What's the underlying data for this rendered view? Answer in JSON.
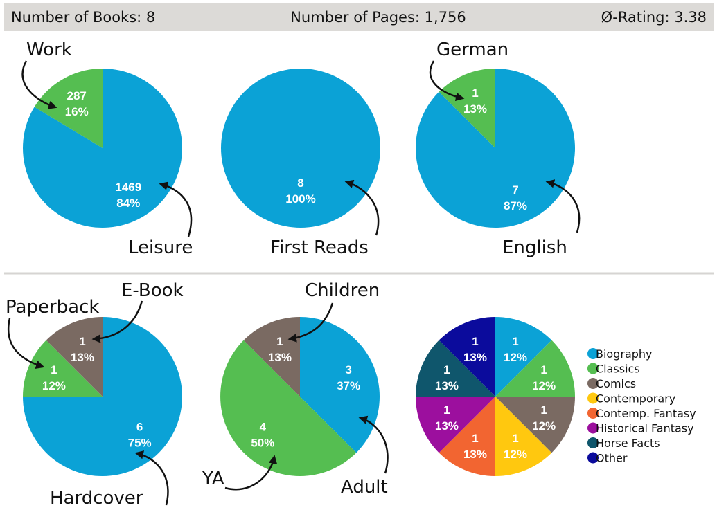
{
  "header": {
    "books": "Number of Books: 8",
    "pages": "Number of Pages: 1,756",
    "rating": "Ø-Rating: 3.38"
  },
  "chart_data": [
    {
      "type": "pie",
      "name": "purpose",
      "slices": [
        {
          "label": "Leisure",
          "value": 1469,
          "value_text": "1469",
          "pct": "84%",
          "color": "#0ba2d6"
        },
        {
          "label": "Work",
          "value": 287,
          "value_text": "287",
          "pct": "16%",
          "color": "#55be51"
        }
      ]
    },
    {
      "type": "pie",
      "name": "first-reads",
      "slices": [
        {
          "label": "First Reads",
          "value": 8,
          "value_text": "8",
          "pct": "100%",
          "color": "#0ba2d6"
        }
      ]
    },
    {
      "type": "pie",
      "name": "language",
      "slices": [
        {
          "label": "English",
          "value": 7,
          "value_text": "7",
          "pct": "87%",
          "color": "#0ba2d6"
        },
        {
          "label": "German",
          "value": 1,
          "value_text": "1",
          "pct": "13%",
          "color": "#55be51"
        }
      ]
    },
    {
      "type": "pie",
      "name": "format",
      "slices": [
        {
          "label": "Hardcover",
          "value": 6,
          "value_text": "6",
          "pct": "75%",
          "color": "#0ba2d6"
        },
        {
          "label": "Paperback",
          "value": 1,
          "value_text": "1",
          "pct": "12%",
          "color": "#55be51"
        },
        {
          "label": "E-Book",
          "value": 1,
          "value_text": "1",
          "pct": "13%",
          "color": "#7a6a62"
        }
      ]
    },
    {
      "type": "pie",
      "name": "audience",
      "slices": [
        {
          "label": "Adult",
          "value": 3,
          "value_text": "3",
          "pct": "37%",
          "color": "#0ba2d6"
        },
        {
          "label": "YA",
          "value": 4,
          "value_text": "4",
          "pct": "50%",
          "color": "#55be51"
        },
        {
          "label": "Children",
          "value": 1,
          "value_text": "1",
          "pct": "13%",
          "color": "#7a6a62"
        }
      ]
    },
    {
      "type": "pie",
      "name": "genre",
      "legend": "right",
      "slices": [
        {
          "label": "Biography",
          "value": 1,
          "value_text": "1",
          "pct": "12%",
          "color": "#0ba2d6"
        },
        {
          "label": "Classics",
          "value": 1,
          "value_text": "1",
          "pct": "12%",
          "color": "#55be51"
        },
        {
          "label": "Comics",
          "value": 1,
          "value_text": "1",
          "pct": "12%",
          "color": "#7a6a62"
        },
        {
          "label": "Contemporary",
          "value": 1,
          "value_text": "1",
          "pct": "12%",
          "color": "#ffc80f"
        },
        {
          "label": "Contemp. Fantasy",
          "value": 1,
          "value_text": "1",
          "pct": "13%",
          "color": "#f26531"
        },
        {
          "label": "Historical Fantasy",
          "value": 1,
          "value_text": "1",
          "pct": "13%",
          "color": "#9c0f9e"
        },
        {
          "label": "Horse Facts",
          "value": 1,
          "value_text": "1",
          "pct": "13%",
          "color": "#0f566c"
        },
        {
          "label": "Other",
          "value": 1,
          "value_text": "1",
          "pct": "13%",
          "color": "#0b0b9c"
        }
      ]
    }
  ]
}
